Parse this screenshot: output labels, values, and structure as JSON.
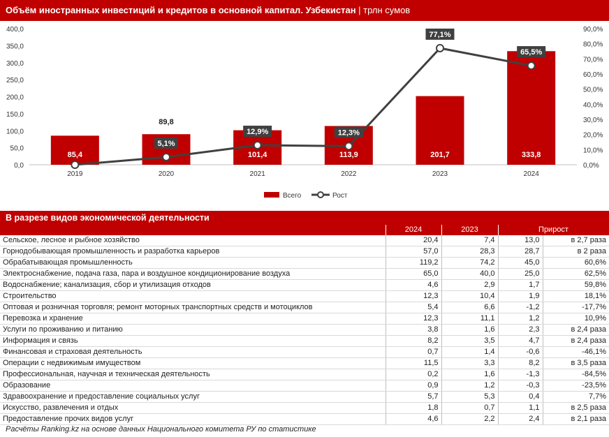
{
  "header": {
    "title": "Объём иностранных инвестиций и кредитов в основной капитал. Узбекистан",
    "unit": " | трлн сумов"
  },
  "legend": {
    "bar": "Всего",
    "line": "Рост"
  },
  "colors": {
    "accent": "#c00000",
    "line": "#404040"
  },
  "chart_data": {
    "type": "bar",
    "categories": [
      "2019",
      "2020",
      "2021",
      "2022",
      "2023",
      "2024"
    ],
    "series": [
      {
        "name": "Всего",
        "type": "bar",
        "axis": "left",
        "values": [
          85.4,
          89.8,
          101.4,
          113.9,
          201.7,
          333.8
        ],
        "labels": [
          "85,4",
          "89,8",
          "101,4",
          "113,9",
          "201,7",
          "333,8"
        ]
      },
      {
        "name": "Рост",
        "type": "line",
        "axis": "right",
        "values": [
          0.0,
          5.1,
          12.9,
          12.3,
          77.1,
          65.5
        ],
        "labels": [
          "",
          "5,1%",
          "12,9%",
          "12,3%",
          "77,1%",
          "65,5%"
        ]
      }
    ],
    "ylim_left": [
      0,
      400
    ],
    "ylim_right": [
      0,
      90
    ],
    "yticks_left": [
      "0,0",
      "50,0",
      "100,0",
      "150,0",
      "200,0",
      "250,0",
      "300,0",
      "350,0",
      "400,0"
    ],
    "yticks_right": [
      "0,0%",
      "10,0%",
      "20,0%",
      "30,0%",
      "40,0%",
      "50,0%",
      "60,0%",
      "70,0%",
      "80,0%",
      "90,0%"
    ],
    "grid": false,
    "legend_position": "bottom"
  },
  "section": {
    "title": "В разрезе видов экономической деятельности"
  },
  "table": {
    "headers": [
      "",
      "2024",
      "2023",
      "Прирост"
    ],
    "rows": [
      [
        "Сельское, лесное и рыбное хозяйство",
        "20,4",
        "7,4",
        "13,0",
        "в 2,7 раза"
      ],
      [
        "Горнодобывающая промышленность и разработка карьеров",
        "57,0",
        "28,3",
        "28,7",
        "в 2 раза"
      ],
      [
        "Обрабатывающая промышленность",
        "119,2",
        "74,2",
        "45,0",
        "60,6%"
      ],
      [
        "Электроснабжение, подача газа, пара и воздушное кондиционирование воздуха",
        "65,0",
        "40,0",
        "25,0",
        "62,5%"
      ],
      [
        "Водоснабжение; канализация, сбор и утилизация отходов",
        "4,6",
        "2,9",
        "1,7",
        "59,8%"
      ],
      [
        "Строительство",
        "12,3",
        "10,4",
        "1,9",
        "18,1%"
      ],
      [
        "Оптовая и розничная торговля; ремонт моторных транспортных средств и мотоциклов",
        "5,4",
        "6,6",
        "-1,2",
        "-17,7%"
      ],
      [
        "Перевозка и хранение",
        "12,3",
        "11,1",
        "1,2",
        "10,9%"
      ],
      [
        "Услуги по проживанию и питанию",
        "3,8",
        "1,6",
        "2,3",
        "в 2,4 раза"
      ],
      [
        "Информация и связь",
        "8,2",
        "3,5",
        "4,7",
        "в 2,4 раза"
      ],
      [
        "Финансовая и страховая деятельность",
        "0,7",
        "1,4",
        "-0,6",
        "-46,1%"
      ],
      [
        "Операции с недвижимым имуществом",
        "11,5",
        "3,3",
        "8,2",
        "в 3,5 раза"
      ],
      [
        "Профессиональная, научная и техническая деятельность",
        "0,2",
        "1,6",
        "-1,3",
        "-84,5%"
      ],
      [
        "Образование",
        "0,9",
        "1,2",
        "-0,3",
        "-23,5%"
      ],
      [
        "Здравоохранение и предоставление социальных услуг",
        "5,7",
        "5,3",
        "0,4",
        "7,7%"
      ],
      [
        "Искусство, развлечения и отдых",
        "1,8",
        "0,7",
        "1,1",
        "в 2,5 раза"
      ],
      [
        "Предоставление прочих видов услуг",
        "4,6",
        "2,2",
        "2,4",
        "в 2,1 раза"
      ]
    ]
  },
  "footer": {
    "note": "Расчёты Ranking.kz на основе данных Национального комитета РУ по статистике"
  }
}
